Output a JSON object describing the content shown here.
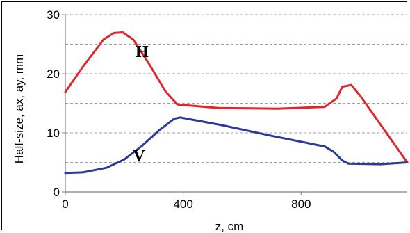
{
  "chart_data": {
    "type": "line",
    "title": "",
    "xlabel": "z, cm",
    "ylabel": "Half-size, ax, ay, mm",
    "xlim": [
      0,
      1160
    ],
    "ylim": [
      0,
      30
    ],
    "xticks": [
      0,
      400,
      800
    ],
    "yticks": [
      0,
      10,
      20,
      30
    ],
    "grid": "horizontal-dashed",
    "series": [
      {
        "name": "H",
        "color": "#e0262a",
        "points": [
          [
            0,
            16.9
          ],
          [
            60,
            21.2
          ],
          [
            130,
            25.8
          ],
          [
            165,
            26.9
          ],
          [
            195,
            27.0
          ],
          [
            230,
            25.8
          ],
          [
            280,
            22.0
          ],
          [
            340,
            17.0
          ],
          [
            380,
            14.8
          ],
          [
            520,
            14.2
          ],
          [
            720,
            14.1
          ],
          [
            880,
            14.4
          ],
          [
            920,
            15.8
          ],
          [
            940,
            17.8
          ],
          [
            970,
            18.1
          ],
          [
            1000,
            16.3
          ],
          [
            1160,
            5.0
          ]
        ]
      },
      {
        "name": "V",
        "color": "#2b3a99",
        "points": [
          [
            0,
            3.2
          ],
          [
            60,
            3.3
          ],
          [
            140,
            4.1
          ],
          [
            200,
            5.5
          ],
          [
            260,
            7.8
          ],
          [
            320,
            10.5
          ],
          [
            370,
            12.4
          ],
          [
            390,
            12.6
          ],
          [
            530,
            11.3
          ],
          [
            700,
            9.5
          ],
          [
            880,
            7.7
          ],
          [
            910,
            6.8
          ],
          [
            940,
            5.3
          ],
          [
            960,
            4.8
          ],
          [
            1070,
            4.7
          ],
          [
            1160,
            5.0
          ]
        ]
      }
    ],
    "annotations": [
      {
        "text": "H",
        "x": 260,
        "y": 22.8
      },
      {
        "text": "V",
        "x": 250,
        "y": 5.2
      }
    ]
  }
}
